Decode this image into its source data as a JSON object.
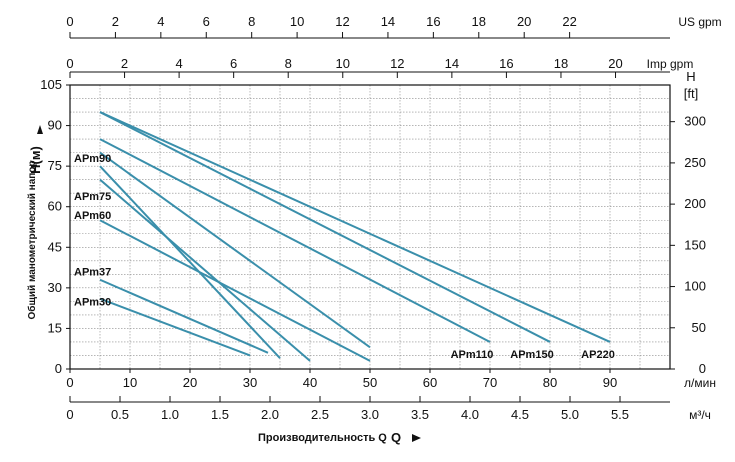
{
  "chart_data": {
    "type": "line",
    "title": "",
    "x": {
      "label": "л/мин",
      "range": [
        0,
        100
      ],
      "ticks": [
        "0",
        "10",
        "20",
        "30",
        "40",
        "50",
        "60",
        "70",
        "80",
        "90"
      ]
    },
    "y": {
      "label": "H(м)",
      "range": [
        0,
        105
      ],
      "ticks": [
        "0",
        "15",
        "30",
        "45",
        "60",
        "75",
        "90",
        "105"
      ]
    },
    "y_right": {
      "label_line1": "H",
      "label_line2": "[ft]",
      "ticks": [
        "0",
        "50",
        "100",
        "150",
        "200",
        "250",
        "300"
      ]
    },
    "us_gpm": {
      "label": "US gpm",
      "ticks": [
        "0",
        "2",
        "4",
        "6",
        "8",
        "10",
        "12",
        "14",
        "16",
        "18",
        "20",
        "22"
      ]
    },
    "imp_gpm": {
      "label": "Imp gpm",
      "ticks": [
        "0",
        "2",
        "4",
        "6",
        "8",
        "10",
        "12",
        "14",
        "16",
        "18",
        "20"
      ]
    },
    "m3h": {
      "label": "м³/ч",
      "ticks": [
        "0",
        "0.5",
        "1.0",
        "1.5",
        "2.0",
        "2.5",
        "3.0",
        "3.5",
        "4.0",
        "4.5",
        "5.0",
        "5.5"
      ]
    },
    "y_side_label": "Общий манометрический напор",
    "x_bottom_label": "Производительность Q",
    "grid": true,
    "series": [
      {
        "name": "APm90",
        "x": [
          5,
          35
        ],
        "y": [
          75,
          4
        ]
      },
      {
        "name": "APm75",
        "x": [
          5,
          40
        ],
        "y": [
          70,
          3
        ]
      },
      {
        "name": "APm60",
        "x": [
          5,
          50
        ],
        "y": [
          55,
          3
        ]
      },
      {
        "name": "APm37",
        "x": [
          5,
          50
        ],
        "y": [
          80,
          8
        ]
      },
      {
        "name": "APm30",
        "x": [
          5,
          30
        ],
        "y": [
          26,
          5
        ]
      },
      {
        "name": "APm110",
        "x": [
          5,
          70
        ],
        "y": [
          85,
          10
        ]
      },
      {
        "name": "APm150",
        "x": [
          5,
          80
        ],
        "y": [
          95,
          10
        ]
      },
      {
        "name": "AP220",
        "x": [
          5,
          90
        ],
        "y": [
          95,
          10
        ]
      },
      {
        "name": "",
        "x": [
          5,
          33
        ],
        "y": [
          33,
          6
        ]
      }
    ],
    "labels": [
      {
        "text": "APm90",
        "y": 78
      },
      {
        "text": "APm75",
        "y": 64
      },
      {
        "text": "APm60",
        "y": 57
      },
      {
        "text": "APm37",
        "y": 36
      },
      {
        "text": "APm30",
        "y": 25
      },
      {
        "text": "APm110",
        "x": 67
      },
      {
        "text": "APm150",
        "x": 77
      },
      {
        "text": "AP220",
        "x": 88
      }
    ]
  }
}
